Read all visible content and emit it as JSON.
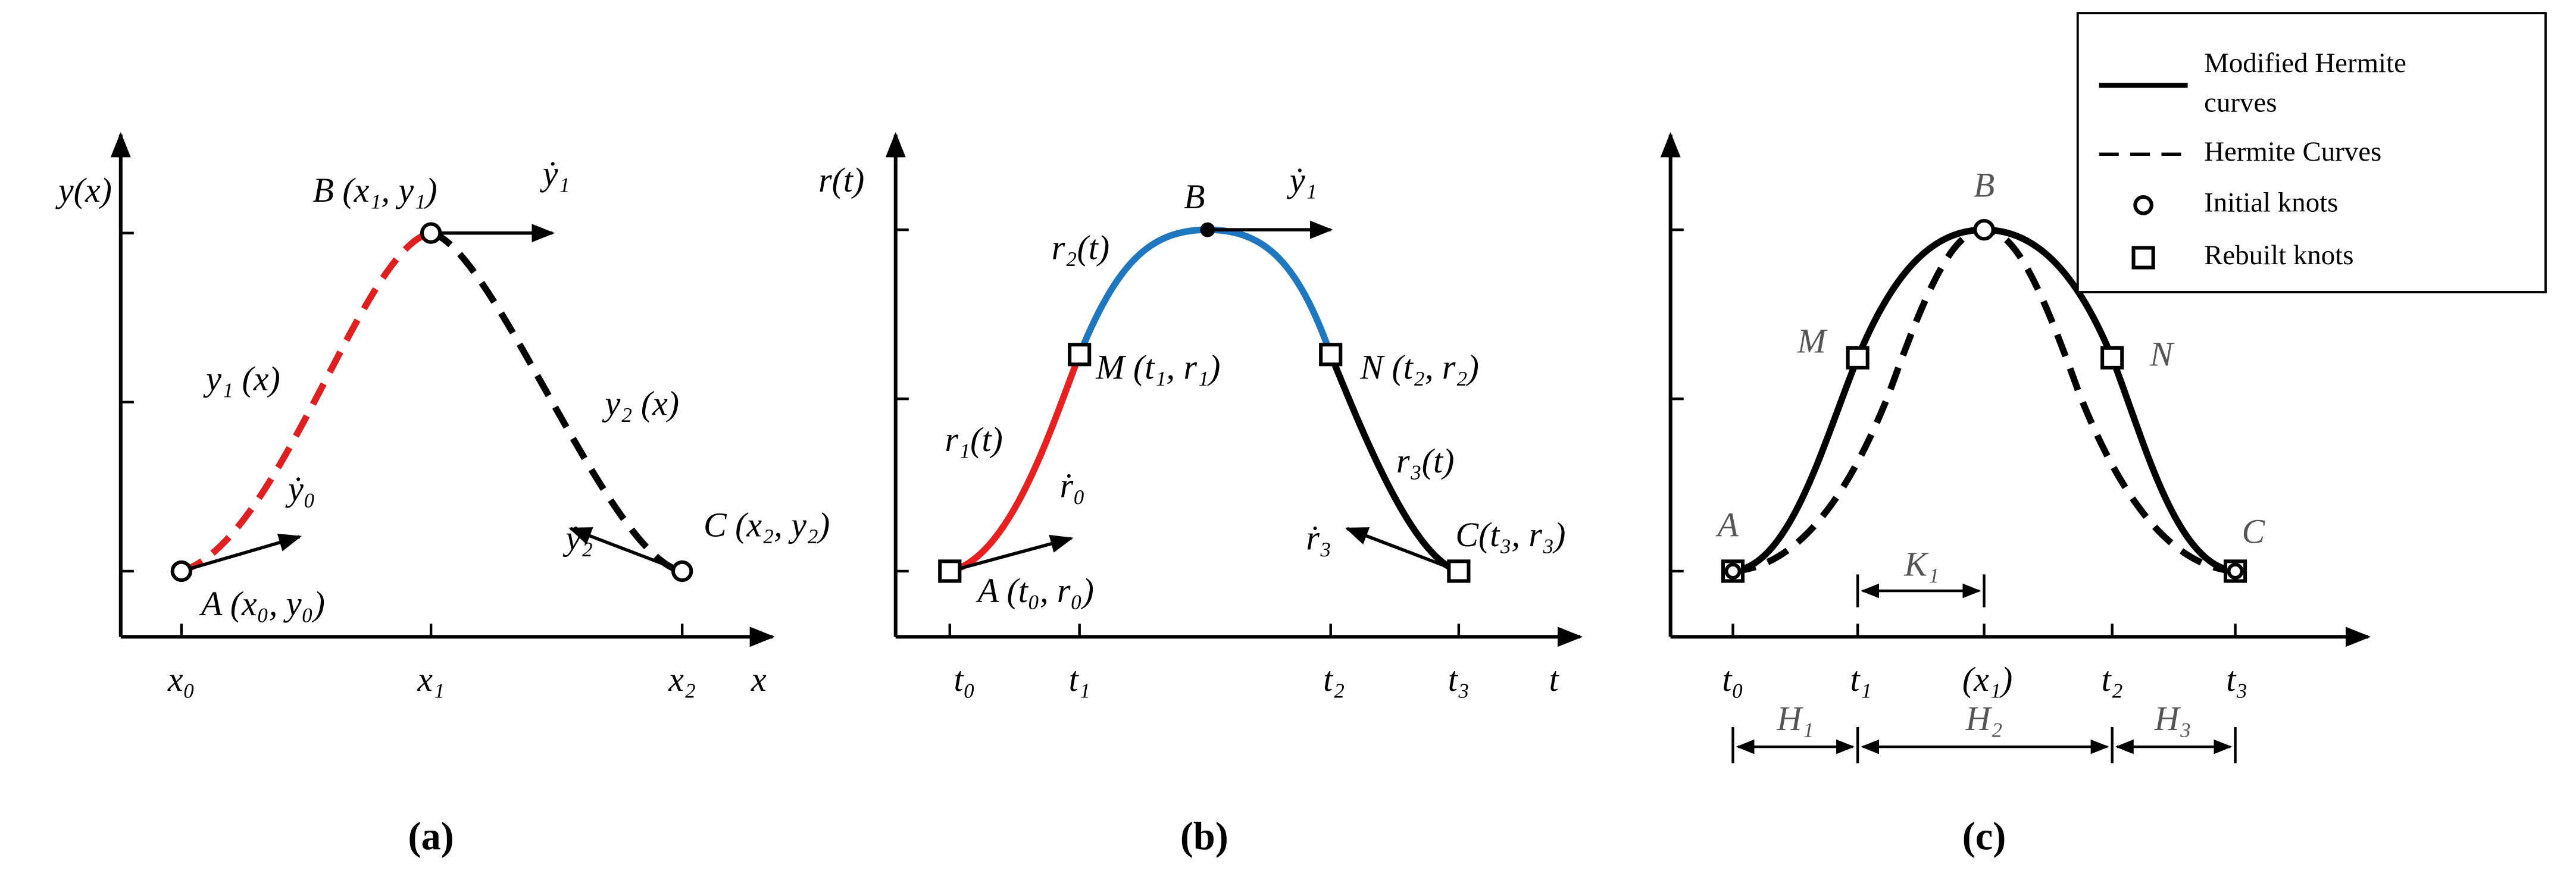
{
  "panel_a": {
    "caption": "(a)",
    "y_axis_label": "y(x)",
    "x_axis_label": "x",
    "x_ticks": [
      "x₀",
      "x₁",
      "x₂"
    ],
    "points": [
      "A (x₀, y₀)",
      "B (x₁, y₁)",
      "C (x₂, y₂)"
    ],
    "curves": [
      "y₁ (x)",
      "y₂ (x)"
    ],
    "tangents": [
      "ẏ₀",
      "ẏ₁",
      "ẏ₂"
    ]
  },
  "panel_b": {
    "caption": "(b)",
    "y_axis_label": "r(t)",
    "x_axis_label": "t",
    "x_ticks": [
      "t₀",
      "t₁",
      "t₂",
      "t₃"
    ],
    "points": [
      "A (t₀, r₀)",
      "M (t₁, r₁)",
      "B",
      "N (t₂, r₂)",
      "C(t₃, r₃)"
    ],
    "curves": [
      "r₁(t)",
      "r₂(t)",
      "r₃(t)"
    ],
    "tangents": [
      "ṙ₀",
      "ẏ₁",
      "ṙ₃"
    ]
  },
  "panel_c": {
    "caption": "(c)",
    "x_ticks": [
      "t₀",
      "t₁",
      "(x₁)",
      "t₂",
      "t₃"
    ],
    "points": [
      "A",
      "M",
      "B",
      "N",
      "C"
    ],
    "intervals": [
      "K₁",
      "H₁",
      "H₂",
      "H₃"
    ]
  },
  "legend": {
    "items": [
      {
        "label_lines": [
          "Modified Hermite",
          "curves"
        ]
      },
      {
        "label_lines": [
          "Hermite  Curves"
        ]
      },
      {
        "label_lines": [
          "Initial knots"
        ]
      },
      {
        "label_lines": [
          "Rebuilt knots"
        ]
      }
    ]
  }
}
